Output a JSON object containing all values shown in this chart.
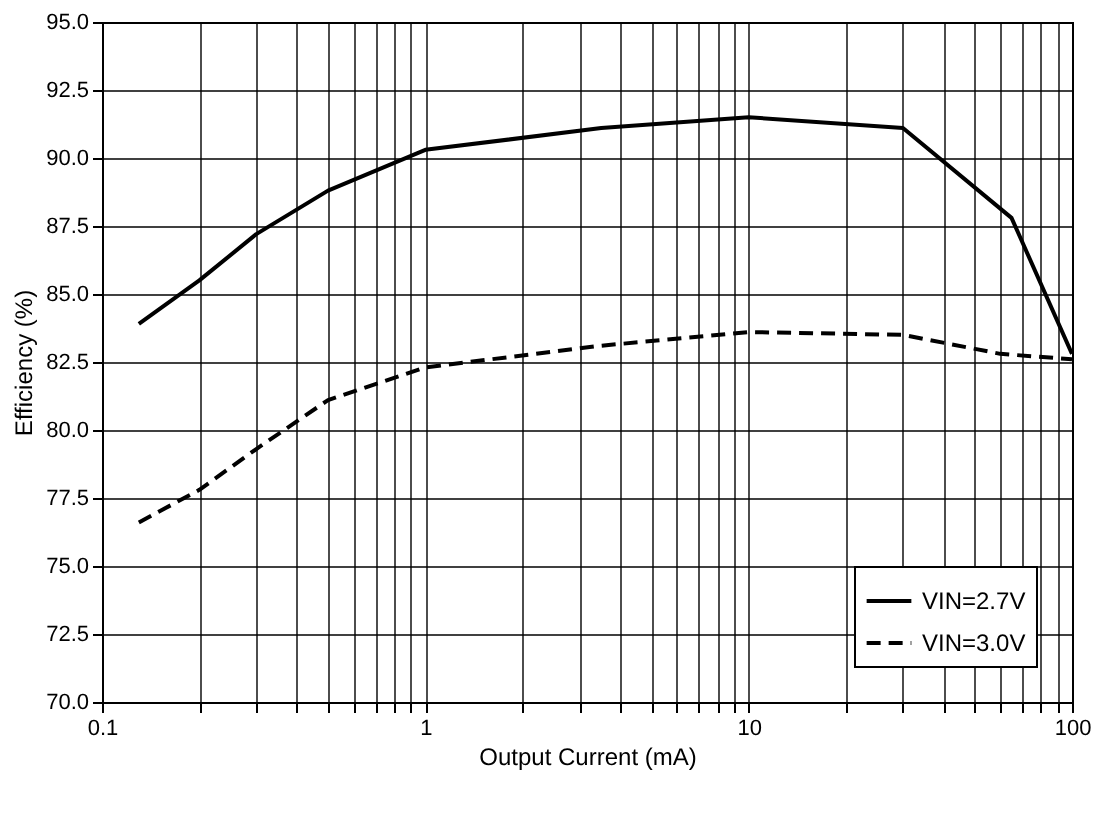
{
  "chart_data": {
    "type": "line",
    "xlabel": "Output Current (mA)",
    "ylabel": "Efficiency (%)",
    "log": "x",
    "xlim": [
      0.1,
      100
    ],
    "xticks": [
      {
        "value": 0.1,
        "label": "0.1"
      },
      {
        "value": 0.2,
        "label": null
      },
      {
        "value": 0.3,
        "label": null
      },
      {
        "value": 0.4,
        "label": null
      },
      {
        "value": 0.5,
        "label": null
      },
      {
        "value": 0.6,
        "label": null
      },
      {
        "value": 0.7,
        "label": null
      },
      {
        "value": 0.8,
        "label": null
      },
      {
        "value": 0.9,
        "label": null
      },
      {
        "value": 1,
        "label": "1"
      },
      {
        "value": 2,
        "label": null
      },
      {
        "value": 3,
        "label": null
      },
      {
        "value": 4,
        "label": null
      },
      {
        "value": 5,
        "label": null
      },
      {
        "value": 6,
        "label": null
      },
      {
        "value": 7,
        "label": null
      },
      {
        "value": 8,
        "label": null
      },
      {
        "value": 9,
        "label": null
      },
      {
        "value": 10,
        "label": "10"
      },
      {
        "value": 20,
        "label": null
      },
      {
        "value": 30,
        "label": null
      },
      {
        "value": 40,
        "label": null
      },
      {
        "value": 50,
        "label": null
      },
      {
        "value": 60,
        "label": null
      },
      {
        "value": 70,
        "label": null
      },
      {
        "value": 80,
        "label": null
      },
      {
        "value": 90,
        "label": null
      },
      {
        "value": 100,
        "label": "100"
      }
    ],
    "ylim": [
      70,
      95
    ],
    "yticks": [
      {
        "value": 70,
        "label": "70.0"
      },
      {
        "value": 72.5,
        "label": "72.5"
      },
      {
        "value": 75,
        "label": "75.0"
      },
      {
        "value": 77.5,
        "label": "77.5"
      },
      {
        "value": 80,
        "label": "80.0"
      },
      {
        "value": 82.5,
        "label": "82.5"
      },
      {
        "value": 85,
        "label": "85.0"
      },
      {
        "value": 87.5,
        "label": "87.5"
      },
      {
        "value": 90,
        "label": "90.0"
      },
      {
        "value": 92.5,
        "label": "92.5"
      },
      {
        "value": 95,
        "label": "95.0"
      }
    ],
    "grid": true,
    "legend": "bottom right",
    "series": [
      {
        "name": "VIN=2.7V",
        "color": "#000000",
        "line_style": "solid",
        "x": [
          0.13,
          0.2,
          0.3,
          0.5,
          1,
          3.5,
          10,
          30,
          65,
          100
        ],
        "values": [
          83.9,
          85.5,
          87.2,
          88.8,
          90.3,
          91.1,
          91.5,
          91.1,
          87.8,
          82.8
        ]
      },
      {
        "name": "VIN=3.0V",
        "color": "#000000",
        "line_style": "dashed",
        "x": [
          0.13,
          0.2,
          0.3,
          0.5,
          1,
          3.5,
          10,
          30,
          60,
          100
        ],
        "values": [
          76.6,
          77.8,
          79.3,
          81.1,
          82.3,
          83.1,
          83.6,
          83.5,
          82.8,
          82.6
        ]
      }
    ]
  }
}
